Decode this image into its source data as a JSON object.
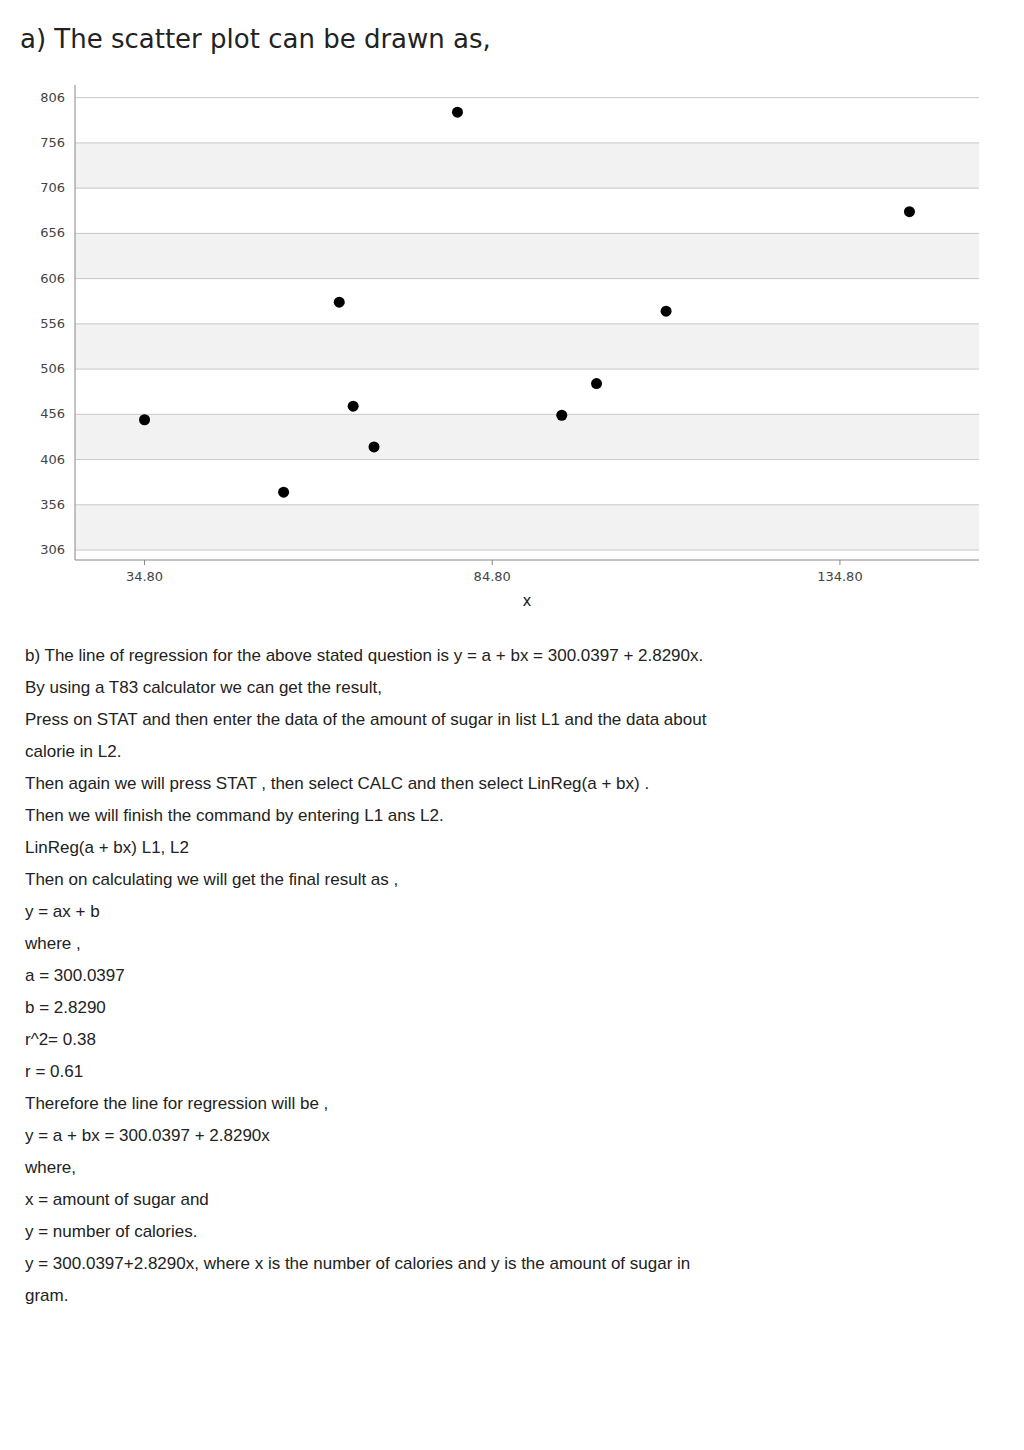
{
  "chart_data": {
    "type": "scatter",
    "title": "a) The scatter plot can be drawn as,",
    "x": [
      34.8,
      54.8,
      62.8,
      64.8,
      67.8,
      79.8,
      94.8,
      99.8,
      109.8,
      144.8
    ],
    "values": [
      450,
      370,
      580,
      465,
      420,
      790,
      455,
      490,
      570,
      680
    ],
    "color": "black",
    "marker": "circle",
    "xlim": [
      24.8,
      154.8
    ],
    "ylim": [
      295,
      820
    ],
    "xticks": [
      {
        "value": 34.8,
        "label": "34.80"
      },
      {
        "value": 84.8,
        "label": "84.80"
      },
      {
        "value": 134.8,
        "label": "134.80"
      }
    ],
    "yticks": [
      306,
      356,
      406,
      456,
      506,
      556,
      606,
      656,
      706,
      756,
      806
    ],
    "xlabel": "x",
    "grid": "y",
    "annotations": [
      "b) The line of regression for the above stated question is  y = a + bx = 300.0397 + 2.8290x.",
      "By using a T83 calculator we can get the result,",
      "Press on STAT and then enter the data of the amount of sugar in list L1 and the data about",
      "calorie in L2.",
      "Then again we will press STAT , then select CALC and then select LinReg(a + bx) .",
      "Then we will finish the command by entering L1 ans L2.",
      "LinReg(a + bx)  L1, L2",
      "Then on calculating we will get the final result as ,",
      "y = ax + b",
      "where ,",
      "a = 300.0397",
      "b = 2.8290",
      "r^2= 0.38",
      "r = 0.61",
      "Therefore the line for regression will be ,",
      "y = a + bx = 300.0397 + 2.8290x",
      "where,",
      "x = amount of sugar and",
      "y = number of calories.",
      "y = 300.0397+2.8290x, where x is the number of calories and y is the amount of sugar in",
      "gram."
    ]
  }
}
